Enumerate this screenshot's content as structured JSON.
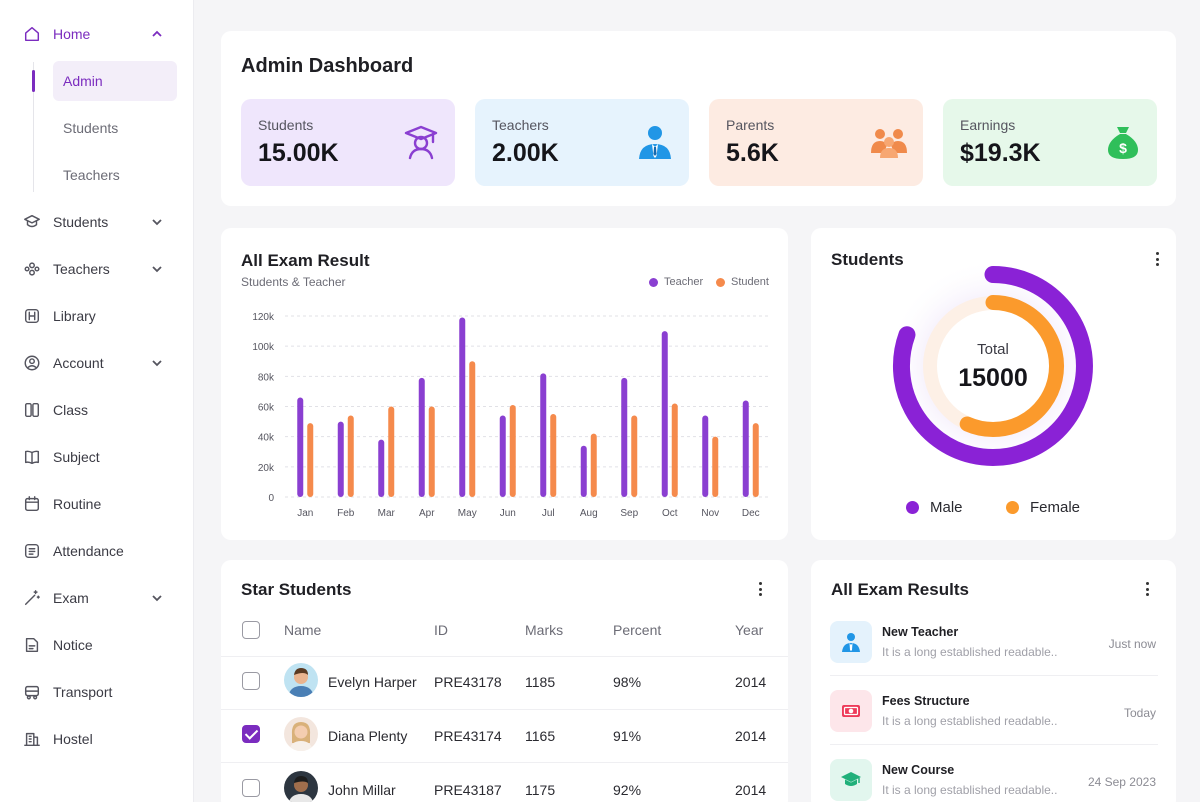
{
  "sidebar": {
    "home": "Home",
    "sub": [
      "Admin",
      "Students",
      "Teachers"
    ],
    "items": [
      "Students",
      "Teachers",
      "Library",
      "Account",
      "Class",
      "Subject",
      "Routine",
      "Attendance",
      "Exam",
      "Notice",
      "Transport",
      "Hostel"
    ]
  },
  "header": {
    "title": "Admin Dashboard"
  },
  "stats": [
    {
      "label": "Students",
      "value": "15.00K",
      "bg": "#efe6fc",
      "icon": "graduate-icon",
      "color": "#8a3fd1"
    },
    {
      "label": "Teachers",
      "value": "2.00K",
      "bg": "#e6f3fd",
      "icon": "teacher-icon",
      "color": "#2196e6"
    },
    {
      "label": "Parents",
      "value": "5.6K",
      "bg": "#fdebe2",
      "icon": "parents-icon",
      "color": "#f08a4b"
    },
    {
      "label": "Earnings",
      "value": "$19.3K",
      "bg": "#e6f8ea",
      "icon": "money-bag-icon",
      "color": "#2fbf5a"
    }
  ],
  "exam_chart": {
    "title": "All Exam Result",
    "subtitle": "Students & Teacher",
    "legend": [
      "Teacher",
      "Student"
    ]
  },
  "chart_data": {
    "type": "bar",
    "categories": [
      "Jan",
      "Feb",
      "Mar",
      "Apr",
      "May",
      "Jun",
      "Jul",
      "Aug",
      "Sep",
      "Oct",
      "Nov",
      "Dec"
    ],
    "series": [
      {
        "name": "Teacher",
        "color": "#8a3fd1",
        "values": [
          66000,
          50000,
          38000,
          79000,
          119000,
          54000,
          82000,
          34000,
          79000,
          110000,
          54000,
          64000
        ]
      },
      {
        "name": "Student",
        "color": "#f58a4c",
        "values": [
          49000,
          54000,
          60000,
          60000,
          90000,
          61000,
          55000,
          42000,
          54000,
          62000,
          40000,
          49000
        ]
      }
    ],
    "yticks": [
      "0",
      "20k",
      "40k",
      "60k",
      "80k",
      "100k",
      "120k"
    ],
    "ylim": [
      0,
      120000
    ],
    "grid": true,
    "legend_position": "top-right"
  },
  "students_donut": {
    "title": "Students",
    "total_label": "Total",
    "total_value": "15000",
    "legend": [
      {
        "label": "Male",
        "color": "#8a22d6"
      },
      {
        "label": "Female",
        "color": "#fb9a2c"
      }
    ]
  },
  "star_students": {
    "title": "Star Students",
    "columns": [
      "Name",
      "ID",
      "Marks",
      "Percent",
      "Year"
    ],
    "rows": [
      {
        "name": "Evelyn Harper",
        "id": "PRE43178",
        "marks": "1185",
        "percent": "98%",
        "year": "2014",
        "checked": false
      },
      {
        "name": "Diana Plenty",
        "id": "PRE43174",
        "marks": "1165",
        "percent": "91%",
        "year": "2014",
        "checked": true
      },
      {
        "name": "John Millar",
        "id": "PRE43187",
        "marks": "1175",
        "percent": "92%",
        "year": "2014",
        "checked": false
      }
    ]
  },
  "exam_results": {
    "title": "All Exam Results",
    "items": [
      {
        "title": "New Teacher",
        "desc": "It is a long established readable..",
        "time": "Just now",
        "bg": "#e4f2fc",
        "icon": "teacher-icon"
      },
      {
        "title": "Fees Structure",
        "desc": "It is a long established readable..",
        "time": "Today",
        "bg": "#fde6ea",
        "icon": "money-icon"
      },
      {
        "title": "New Course",
        "desc": "It is a long established readable..",
        "time": "24 Sep 2023",
        "bg": "#e2f6ee",
        "icon": "graduate-icon"
      }
    ]
  }
}
